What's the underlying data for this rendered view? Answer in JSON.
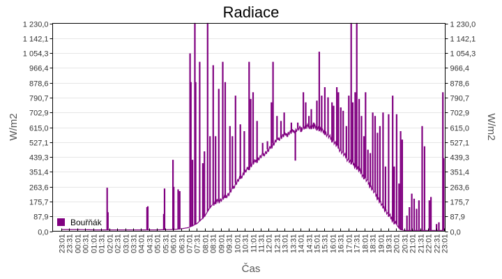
{
  "chart_data": {
    "type": "line",
    "title": "Radiace",
    "xlabel": "Čas",
    "ylabel": "W/m2",
    "ylabel_right": "W/m2",
    "ylim": [
      0,
      1230
    ],
    "grid": true,
    "legend_position": "bottom-left-inside",
    "legend": [
      {
        "name": "Bouřňák",
        "color": "#800080"
      }
    ],
    "y_ticks": [
      "0,0",
      "87,9",
      "175,7",
      "263,6",
      "351,4",
      "439,3",
      "527,1",
      "615,0",
      "702,9",
      "790,7",
      "878,6",
      "966,4",
      "1 054,3",
      "1 142,1",
      "1 230,0"
    ],
    "x_ticks": [
      "23:01",
      "23:31",
      "00:01",
      "00:31",
      "01:01",
      "01:31",
      "02:01",
      "02:31",
      "03:01",
      "03:31",
      "04:01",
      "04:31",
      "05:01",
      "05:31",
      "06:01",
      "06:31",
      "07:01",
      "07:31",
      "08:01",
      "08:31",
      "09:01",
      "09:31",
      "10:01",
      "10:31",
      "11:01",
      "11:31",
      "12:01",
      "12:31",
      "13:01",
      "13:31",
      "14:01",
      "14:31",
      "15:01",
      "15:31",
      "16:01",
      "16:31",
      "17:01",
      "17:31",
      "18:01",
      "18:31",
      "19:01",
      "19:31",
      "20:01",
      "20:31",
      "21:01",
      "21:31",
      "22:01",
      "22:31",
      "23:01"
    ],
    "series": [
      {
        "name": "Bouřňák",
        "color": "#800080",
        "baseline": [
          [
            0,
            10
          ],
          [
            2,
            10
          ],
          [
            4,
            8
          ],
          [
            6,
            8
          ],
          [
            8,
            8
          ],
          [
            10,
            8
          ],
          [
            12,
            8
          ],
          [
            14,
            10
          ],
          [
            15,
            14
          ],
          [
            16,
            22
          ],
          [
            17,
            45
          ],
          [
            18,
            90
          ],
          [
            18.5,
            130
          ],
          [
            19,
            160
          ],
          [
            19.5,
            175
          ],
          [
            20,
            185
          ],
          [
            21,
            220
          ],
          [
            22,
            290
          ],
          [
            23,
            350
          ],
          [
            24,
            400
          ],
          [
            25,
            440
          ],
          [
            26,
            480
          ],
          [
            27,
            540
          ],
          [
            28,
            570
          ],
          [
            29,
            590
          ],
          [
            30,
            610
          ],
          [
            31,
            620
          ],
          [
            32,
            615
          ],
          [
            33,
            585
          ],
          [
            34,
            540
          ],
          [
            35,
            480
          ],
          [
            36,
            420
          ],
          [
            37,
            380
          ],
          [
            38,
            320
          ],
          [
            39,
            250
          ],
          [
            40,
            170
          ],
          [
            41,
            100
          ],
          [
            42,
            40
          ],
          [
            42.5,
            10
          ],
          [
            43,
            5
          ],
          [
            44,
            5
          ],
          [
            45,
            5
          ],
          [
            46,
            5
          ],
          [
            47,
            5
          ],
          [
            48,
            5
          ]
        ],
        "spikes": [
          [
            5.7,
            255
          ],
          [
            5.8,
            110
          ],
          [
            10.7,
            140
          ],
          [
            10.8,
            145
          ],
          [
            12.8,
            100
          ],
          [
            12.9,
            250
          ],
          [
            13.95,
            420
          ],
          [
            14.05,
            260
          ],
          [
            14.6,
            245
          ],
          [
            14.8,
            235
          ],
          [
            16.1,
            1050
          ],
          [
            16.2,
            880
          ],
          [
            16.4,
            420
          ],
          [
            16.7,
            1230
          ],
          [
            16.8,
            880
          ],
          [
            17.3,
            1000
          ],
          [
            17.7,
            400
          ],
          [
            17.9,
            470
          ],
          [
            18.3,
            1230
          ],
          [
            18.6,
            560
          ],
          [
            19.0,
            980
          ],
          [
            19.3,
            560
          ],
          [
            19.7,
            840
          ],
          [
            20.2,
            1000
          ],
          [
            20.5,
            880
          ],
          [
            21.1,
            620
          ],
          [
            21.4,
            560
          ],
          [
            21.8,
            800
          ],
          [
            22.4,
            630
          ],
          [
            22.9,
            590
          ],
          [
            23.5,
            1000
          ],
          [
            23.7,
            780
          ],
          [
            24.0,
            820
          ],
          [
            24.5,
            650
          ],
          [
            25.2,
            520
          ],
          [
            25.8,
            530
          ],
          [
            26.3,
            760
          ],
          [
            26.5,
            1000
          ],
          [
            27.0,
            680
          ],
          [
            27.5,
            650
          ],
          [
            27.9,
            700
          ],
          [
            28.3,
            560
          ],
          [
            28.8,
            640
          ],
          [
            29.3,
            420
          ],
          [
            29.6,
            640
          ],
          [
            30.0,
            590
          ],
          [
            30.3,
            820
          ],
          [
            30.6,
            760
          ],
          [
            31.0,
            680
          ],
          [
            31.3,
            720
          ],
          [
            31.6,
            640
          ],
          [
            32.0,
            770
          ],
          [
            32.3,
            1060
          ],
          [
            32.6,
            800
          ],
          [
            33.0,
            850
          ],
          [
            33.4,
            790
          ],
          [
            33.9,
            760
          ],
          [
            34.1,
            740
          ],
          [
            34.5,
            850
          ],
          [
            34.7,
            820
          ],
          [
            35.0,
            730
          ],
          [
            35.3,
            710
          ],
          [
            35.7,
            620
          ],
          [
            36.0,
            800
          ],
          [
            36.3,
            1230
          ],
          [
            36.5,
            760
          ],
          [
            36.8,
            820
          ],
          [
            37.0,
            1230
          ],
          [
            37.3,
            780
          ],
          [
            37.6,
            680
          ],
          [
            37.9,
            560
          ],
          [
            38.1,
            820
          ],
          [
            38.4,
            480
          ],
          [
            38.7,
            460
          ],
          [
            39.0,
            700
          ],
          [
            39.3,
            680
          ],
          [
            39.6,
            580
          ],
          [
            39.9,
            620
          ],
          [
            40.3,
            700
          ],
          [
            40.6,
            380
          ],
          [
            41.0,
            690
          ],
          [
            41.5,
            800
          ],
          [
            41.7,
            380
          ],
          [
            42.0,
            690
          ],
          [
            42.3,
            280
          ],
          [
            42.5,
            590
          ],
          [
            42.7,
            540
          ],
          [
            43.3,
            90
          ],
          [
            43.6,
            140
          ],
          [
            43.9,
            220
          ],
          [
            44.2,
            190
          ],
          [
            44.5,
            130
          ],
          [
            44.8,
            180
          ],
          [
            45.2,
            620
          ],
          [
            45.5,
            500
          ],
          [
            46.1,
            180
          ],
          [
            46.3,
            200
          ],
          [
            47.0,
            40
          ],
          [
            47.3,
            50
          ],
          [
            47.8,
            820
          ],
          [
            47.9,
            430
          ]
        ]
      }
    ]
  }
}
